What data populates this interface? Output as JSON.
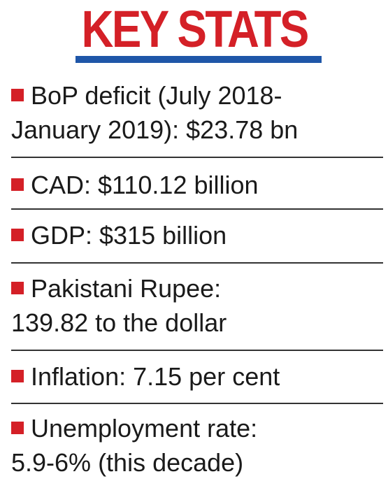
{
  "title": "KEY STATS",
  "colors": {
    "title": "#d42027",
    "title_bar": "#1f56a8",
    "bullet": "#d42027"
  },
  "items": [
    {
      "line1": "BoP deficit (July 2018-",
      "line2": "January 2019): $23.78 bn"
    },
    {
      "line1": "CAD: $110.12 billion"
    },
    {
      "line1": "GDP: $315 billion"
    },
    {
      "line1": "Pakistani Rupee:",
      "line2": "139.82 to the dollar"
    },
    {
      "line1": "Inflation: 7.15 per cent"
    },
    {
      "line1": "Unemployment rate:",
      "line2": "5.9-6% (this decade)"
    }
  ]
}
